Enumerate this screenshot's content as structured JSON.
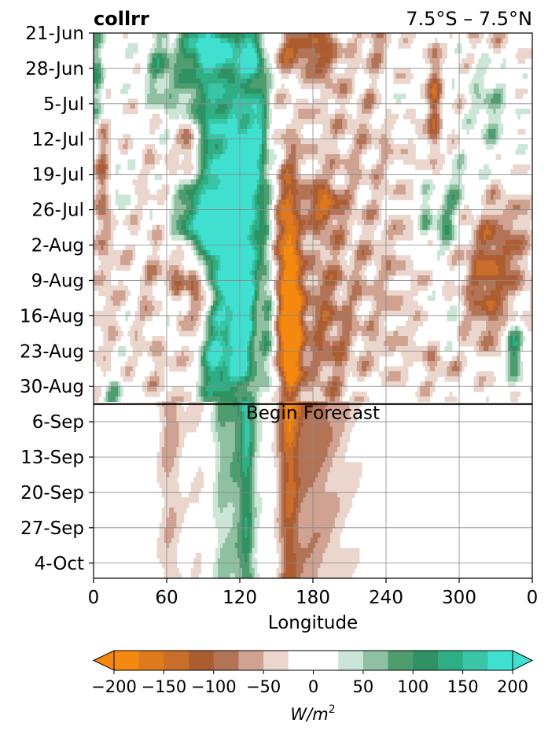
{
  "chart_data": {
    "type": "heatmap",
    "title": "collrr",
    "subtitle": "7.5°S – 7.5°N",
    "xlabel": "Longitude",
    "ylabel": "",
    "x_ticks": [
      "0",
      "60",
      "120",
      "180",
      "240",
      "300",
      "0"
    ],
    "x_tick_values": [
      0,
      60,
      120,
      180,
      240,
      300,
      360
    ],
    "xlim": [
      0,
      360
    ],
    "y_ticks": [
      "21-Jun",
      "28-Jun",
      "5-Jul",
      "12-Jul",
      "19-Jul",
      "26-Jul",
      "2-Aug",
      "9-Aug",
      "16-Aug",
      "23-Aug",
      "30-Aug",
      "6-Sep",
      "13-Sep",
      "20-Sep",
      "27-Sep",
      "4-Oct"
    ],
    "y_tick_days": [
      0,
      7,
      14,
      21,
      28,
      35,
      42,
      49,
      56,
      63,
      70,
      77,
      84,
      91,
      98,
      105
    ],
    "ylim_days": [
      0,
      108
    ],
    "grid": true,
    "annotation": {
      "text": "Begin Forecast",
      "day": 73.5
    },
    "colorbar": {
      "label": "W/m",
      "label_exp": "2",
      "levels": [
        -200,
        -175,
        -150,
        -125,
        -100,
        -75,
        -50,
        -25,
        25,
        50,
        75,
        100,
        125,
        150,
        175,
        200
      ],
      "tick_values": [
        -200,
        -150,
        -100,
        -50,
        0,
        50,
        100,
        150,
        200
      ],
      "tick_labels": [
        "−200",
        "−150",
        "−100",
        "−50",
        "0",
        "50",
        "100",
        "150",
        "200"
      ],
      "colors": [
        "#f5880e",
        "#de7a1c",
        "#c96e2a",
        "#ad5d32",
        "#b27356",
        "#cfa291",
        "#ead6cc",
        "#ffffff",
        "#cbe5d6",
        "#8ec0a1",
        "#4e9d6f",
        "#2f9263",
        "#2fae84",
        "#39c5a6",
        "#40e0d0"
      ],
      "extend": "both"
    },
    "features": [
      {
        "lon": 92,
        "day": 3,
        "sx": 14,
        "sy": 3,
        "v": 170
      },
      {
        "lon": 128,
        "day": 4,
        "sx": 9,
        "sy": 3,
        "v": 150
      },
      {
        "lon": 97,
        "day": 18,
        "sx": 8,
        "sy": 14,
        "v": 150
      },
      {
        "lon": 113,
        "day": 25,
        "sx": 7,
        "sy": 18,
        "v": 130
      },
      {
        "lon": 132,
        "day": 22,
        "sx": 8,
        "sy": 12,
        "v": 190
      },
      {
        "lon": 56,
        "day": 8,
        "sx": 9,
        "sy": 6,
        "v": 100
      },
      {
        "lon": 78,
        "day": 12,
        "sx": 7,
        "sy": 5,
        "v": 90
      },
      {
        "lon": 88,
        "day": 38,
        "sx": 18,
        "sy": 6,
        "v": 200
      },
      {
        "lon": 122,
        "day": 45,
        "sx": 8,
        "sy": 16,
        "v": 170
      },
      {
        "lon": 103,
        "day": 48,
        "sx": 7,
        "sy": 7,
        "v": 100
      },
      {
        "lon": 62,
        "day": 56,
        "sx": 5,
        "sy": 4,
        "v": 120
      },
      {
        "lon": 75,
        "day": 53,
        "sx": 4,
        "sy": 4,
        "v": 100
      },
      {
        "lon": 100,
        "day": 65,
        "sx": 9,
        "sy": 7,
        "v": 180
      },
      {
        "lon": 122,
        "day": 60,
        "sx": 7,
        "sy": 10,
        "v": 140
      },
      {
        "lon": 142,
        "day": 55,
        "sx": 4,
        "sy": 12,
        "v": 80
      },
      {
        "lon": 3,
        "day": 10,
        "sx": 4,
        "sy": 8,
        "v": 110
      },
      {
        "lon": 18,
        "day": 30,
        "sx": 4,
        "sy": 4,
        "v": 70
      },
      {
        "lon": 15,
        "day": 73,
        "sx": 6,
        "sy": 3,
        "v": 90
      },
      {
        "lon": 290,
        "day": 38,
        "sx": 8,
        "sy": 4,
        "v": 110
      },
      {
        "lon": 272,
        "day": 36,
        "sx": 4,
        "sy": 5,
        "v": 80
      },
      {
        "lon": 325,
        "day": 15,
        "sx": 10,
        "sy": 6,
        "v": 60
      },
      {
        "lon": 345,
        "day": 63,
        "sx": 5,
        "sy": 4,
        "v": 140
      },
      {
        "lon": 288,
        "day": 60,
        "sx": 8,
        "sy": 8,
        "v": 60
      },
      {
        "lon": 300,
        "day": 30,
        "sx": 12,
        "sy": 3,
        "v": 60
      },
      {
        "lon": 248,
        "day": 14,
        "sx": 5,
        "sy": 3,
        "v": 55
      },
      {
        "lon": 165,
        "day": 3,
        "sx": 14,
        "sy": 3,
        "v": -110
      },
      {
        "lon": 190,
        "day": 4,
        "sx": 8,
        "sy": 4,
        "v": -80
      },
      {
        "lon": 230,
        "day": 1,
        "sx": 8,
        "sy": 3,
        "v": -60
      },
      {
        "lon": 160,
        "day": 45,
        "sx": 7,
        "sy": 14,
        "v": -180
      },
      {
        "lon": 162,
        "day": 62,
        "sx": 6,
        "sy": 8,
        "v": -200
      },
      {
        "lon": 188,
        "day": 34,
        "sx": 10,
        "sy": 3,
        "v": -110
      },
      {
        "lon": 190,
        "day": 58,
        "sx": 16,
        "sy": 14,
        "v": -90
      },
      {
        "lon": 215,
        "day": 20,
        "sx": 40,
        "sy": 14,
        "v": -45
      },
      {
        "lon": 78,
        "day": 50,
        "sx": 12,
        "sy": 7,
        "v": -130
      },
      {
        "lon": 78,
        "day": 22,
        "sx": 5,
        "sy": 4,
        "v": -100
      },
      {
        "lon": 55,
        "day": 50,
        "sx": 18,
        "sy": 25,
        "v": -45
      },
      {
        "lon": 7,
        "day": 25,
        "sx": 4,
        "sy": 8,
        "v": -80
      },
      {
        "lon": 10,
        "day": 45,
        "sx": 8,
        "sy": 20,
        "v": -45
      },
      {
        "lon": 280,
        "day": 14,
        "sx": 4,
        "sy": 8,
        "v": -110
      },
      {
        "lon": 325,
        "day": 48,
        "sx": 12,
        "sy": 10,
        "v": -90
      },
      {
        "lon": 348,
        "day": 42,
        "sx": 10,
        "sy": 8,
        "v": -55
      },
      {
        "lon": 305,
        "day": 48,
        "sx": 30,
        "sy": 12,
        "v": -40
      },
      {
        "lon": 286,
        "day": 66,
        "sx": 9,
        "sy": 4,
        "v": -80
      },
      {
        "lon": 234,
        "day": 47,
        "sx": 18,
        "sy": 8,
        "v": -40
      },
      {
        "lon": 238,
        "day": 63,
        "sx": 25,
        "sy": 6,
        "v": -35
      },
      {
        "lon": 325,
        "day": 0,
        "sx": 20,
        "sy": 3,
        "v": -40
      },
      {
        "lon": 203,
        "day": 78,
        "sx": 4,
        "sy": 3,
        "v": -55
      },
      {
        "lon": 286,
        "day": 82,
        "sx": 4,
        "sy": 4,
        "v": -40
      }
    ],
    "forecast_features": [
      {
        "lon": 118,
        "sx": 11,
        "v": 95
      },
      {
        "lon": 126,
        "sx": 4,
        "v": 110
      },
      {
        "lon": 104,
        "sx": 4,
        "v": 35
      },
      {
        "lon": 160,
        "sx": 6,
        "v": -150
      },
      {
        "lon": 177,
        "sx": 13,
        "v": -90
      },
      {
        "lon": 200,
        "sx": 15,
        "v": -45
      },
      {
        "lon": 65,
        "sx": 6,
        "v": -60
      },
      {
        "lon": 58,
        "sx": 5,
        "v": -30
      },
      {
        "lon": 85,
        "sx": 6,
        "v": -30
      }
    ],
    "noise_amplitude": 28
  }
}
